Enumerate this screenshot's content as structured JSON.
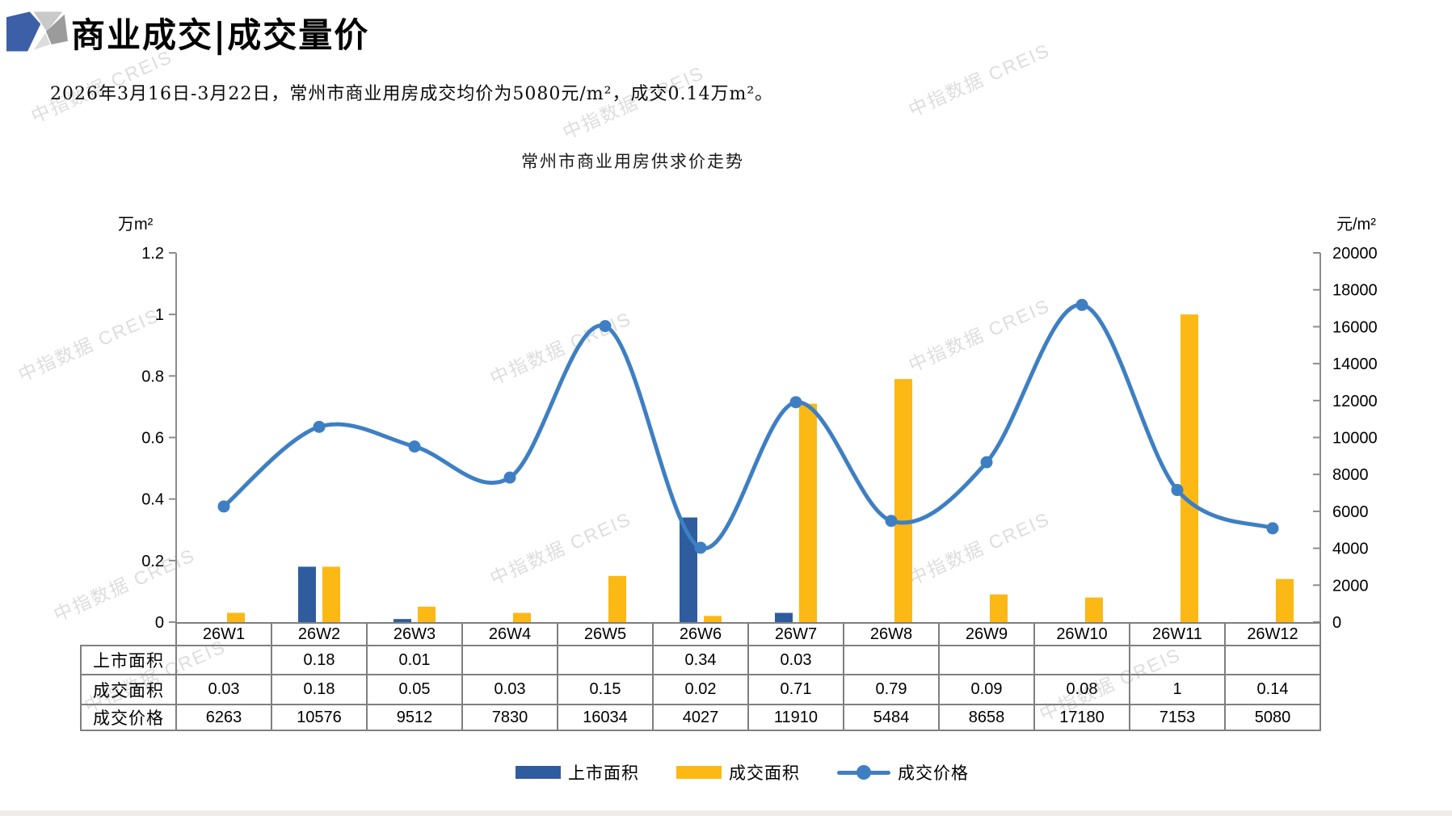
{
  "page": {
    "title": "商业成交|成交量价",
    "subtitle": "2026年3月16日-3月22日，常州市商业用房成交均价为5080元/m²，成交0.14万m²。",
    "watermark_text": "中指数据 CREIS"
  },
  "chart_data": {
    "type": "combo-bar-line",
    "title": "常州市商业用房供求价走势",
    "categories": [
      "26W1",
      "26W2",
      "26W3",
      "26W4",
      "26W5",
      "26W6",
      "26W7",
      "26W8",
      "26W9",
      "26W10",
      "26W11",
      "26W12"
    ],
    "left_axis": {
      "unit": "万m²",
      "min": 0,
      "max": 1.2,
      "ticks": [
        "1.2",
        "1",
        "0.8",
        "0.6",
        "0.4",
        "0.2",
        "0"
      ]
    },
    "right_axis": {
      "unit": "元/m²",
      "min": 0,
      "max": 20000,
      "ticks": [
        "20000",
        "18000",
        "16000",
        "14000",
        "12000",
        "10000",
        "8000",
        "6000",
        "4000",
        "2000",
        "0"
      ]
    },
    "series": [
      {
        "name": "上市面积",
        "type": "bar",
        "axis": "left",
        "color": "#2E5C9F",
        "values": [
          null,
          0.18,
          0.01,
          null,
          null,
          0.34,
          0.03,
          null,
          null,
          null,
          null,
          null
        ]
      },
      {
        "name": "成交面积",
        "type": "bar",
        "axis": "left",
        "color": "#FCB814",
        "values": [
          0.03,
          0.18,
          0.05,
          0.03,
          0.15,
          0.02,
          0.71,
          0.79,
          0.09,
          0.08,
          1,
          0.14
        ]
      },
      {
        "name": "成交价格",
        "type": "line",
        "axis": "right",
        "color": "#3E7FC3",
        "values": [
          6263,
          10576,
          9512,
          7830,
          16034,
          4027,
          11910,
          5484,
          8658,
          17180,
          7153,
          5080
        ]
      }
    ],
    "legend_position": "bottom",
    "grid": false
  },
  "table": {
    "row_labels": [
      "上市面积",
      "成交面积",
      "成交价格"
    ],
    "rows": [
      [
        "",
        "0.18",
        "0.01",
        "",
        "",
        "0.34",
        "0.03",
        "",
        "",
        "",
        "",
        ""
      ],
      [
        "0.03",
        "0.18",
        "0.05",
        "0.03",
        "0.15",
        "0.02",
        "0.71",
        "0.79",
        "0.09",
        "0.08",
        "1",
        "0.14"
      ],
      [
        "6263",
        "10576",
        "9512",
        "7830",
        "16034",
        "4027",
        "11910",
        "5484",
        "8658",
        "17180",
        "7153",
        "5080"
      ]
    ]
  }
}
